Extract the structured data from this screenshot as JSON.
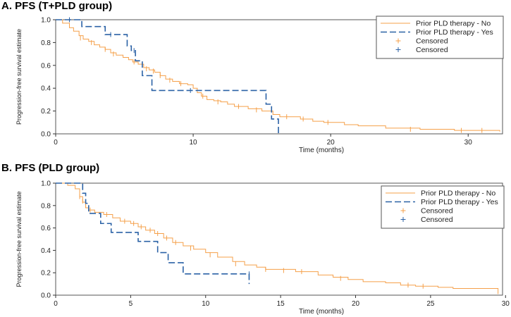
{
  "panels": [
    {
      "title": "A. PFS (T+PLD group)"
    },
    {
      "title": "B. PFS (PLD group)"
    }
  ],
  "colors": {
    "no": "#f5a04a",
    "yes": "#2b62a6",
    "axis": "#333333",
    "frame": "#555555"
  },
  "chart_data": [
    {
      "type": "line",
      "title": "A. PFS (T+PLD group)",
      "xlabel": "Time (months)",
      "ylabel": "Progression-free survival estimate",
      "xlim": [
        0,
        32.5
      ],
      "ylim": [
        0,
        1.0
      ],
      "xticks": [
        0,
        10,
        20,
        30
      ],
      "yticks": [
        0.0,
        0.2,
        0.4,
        0.6,
        0.8,
        1.0
      ],
      "ytick_labels": [
        "0.0",
        "0.2",
        "0.4",
        "0.6",
        "0.8",
        "1.0"
      ],
      "legend": {
        "position": "top-right",
        "entries": [
          "Prior PLD therapy - No",
          "Prior PLD therapy - Yes",
          "Censored",
          "Censored"
        ]
      },
      "series": [
        {
          "name": "Prior PLD therapy - No",
          "style": "solid",
          "x": [
            0,
            0.5,
            1.0,
            1.3,
            1.7,
            2.0,
            2.4,
            2.8,
            3.2,
            3.6,
            4.0,
            4.4,
            4.9,
            5.3,
            5.6,
            6.0,
            6.4,
            6.8,
            7.2,
            7.6,
            8.0,
            8.5,
            9.0,
            9.6,
            10.0,
            10.3,
            10.6,
            11.0,
            11.5,
            12.0,
            12.5,
            13.0,
            14.0,
            15.0,
            15.8,
            16.3,
            17.0,
            17.8,
            18.7,
            19.5,
            21.0,
            22.0,
            24.0,
            26.5,
            29.0,
            32.3
          ],
          "y": [
            1.0,
            0.97,
            0.93,
            0.9,
            0.86,
            0.83,
            0.81,
            0.78,
            0.76,
            0.74,
            0.71,
            0.69,
            0.67,
            0.65,
            0.63,
            0.61,
            0.58,
            0.56,
            0.54,
            0.51,
            0.48,
            0.46,
            0.44,
            0.43,
            0.4,
            0.36,
            0.33,
            0.3,
            0.29,
            0.28,
            0.26,
            0.24,
            0.22,
            0.2,
            0.17,
            0.15,
            0.15,
            0.13,
            0.11,
            0.1,
            0.08,
            0.07,
            0.05,
            0.04,
            0.03,
            0.02
          ],
          "censored_x": [
            1.8,
            2.6,
            3.6,
            4.2,
            5.7,
            6.6,
            7.1,
            7.6,
            8.3,
            9.1,
            10.7,
            11.8,
            13.3,
            14.6,
            16.8,
            18.0,
            19.8,
            25.8,
            29.5,
            31.0
          ],
          "censored_y": [
            0.84,
            0.8,
            0.74,
            0.7,
            0.63,
            0.57,
            0.55,
            0.51,
            0.47,
            0.44,
            0.33,
            0.28,
            0.24,
            0.21,
            0.15,
            0.13,
            0.1,
            0.04,
            0.03,
            0.03
          ]
        },
        {
          "name": "Prior PLD therapy - Yes",
          "style": "dashed",
          "x": [
            0,
            1.9,
            3.6,
            5.2,
            5.5,
            5.8,
            6.3,
            7.0,
            15.3,
            15.7,
            16.2
          ],
          "y": [
            1.0,
            0.94,
            0.87,
            0.77,
            0.73,
            0.64,
            0.51,
            0.38,
            0.26,
            0.13,
            0.0
          ],
          "censored_x": [
            1.0,
            4.0,
            5.7,
            9.8,
            16.2
          ],
          "censored_y": [
            1.0,
            0.87,
            0.73,
            0.38,
            0.04
          ]
        }
      ]
    },
    {
      "type": "line",
      "title": "B. PFS (PLD group)",
      "xlabel": "Time (months)",
      "ylabel": "Progression-free survival estimate",
      "xlim": [
        0,
        29.8
      ],
      "ylim": [
        0,
        1.0
      ],
      "xticks": [
        0,
        5,
        10,
        15,
        20,
        25,
        30
      ],
      "yticks": [
        0.0,
        0.2,
        0.4,
        0.6,
        0.8,
        1.0
      ],
      "ytick_labels": [
        "0.0",
        "0.2",
        "0.4",
        "0.6",
        "0.8",
        "1.0"
      ],
      "legend": {
        "position": "top-right",
        "entries": [
          "Prior PLD therapy - No",
          "Prior PLD therapy - Yes",
          "Censored",
          "Censored"
        ]
      },
      "series": [
        {
          "name": "Prior PLD therapy - No",
          "style": "solid",
          "x": [
            0,
            0.8,
            1.3,
            1.6,
            1.8,
            2.0,
            2.2,
            2.6,
            3.2,
            3.8,
            4.3,
            5.0,
            5.5,
            6.0,
            6.6,
            7.2,
            7.8,
            8.5,
            9.2,
            10.0,
            10.8,
            11.8,
            12.6,
            13.4,
            14.0,
            16.0,
            17.5,
            18.5,
            19.5,
            20.5,
            22.0,
            23.0,
            24.0,
            25.5,
            26.5,
            29.5
          ],
          "y": [
            1.0,
            0.98,
            0.95,
            0.88,
            0.83,
            0.78,
            0.76,
            0.74,
            0.72,
            0.69,
            0.66,
            0.64,
            0.61,
            0.58,
            0.55,
            0.51,
            0.47,
            0.44,
            0.41,
            0.38,
            0.34,
            0.3,
            0.27,
            0.25,
            0.23,
            0.21,
            0.18,
            0.16,
            0.14,
            0.12,
            0.11,
            0.09,
            0.08,
            0.07,
            0.06,
            0.01
          ],
          "censored_x": [
            1.6,
            1.8,
            2.0,
            2.3,
            3.4,
            4.6,
            5.2,
            5.7,
            6.3,
            6.8,
            7.4,
            8.0,
            9.0,
            10.3,
            12.0,
            14.0,
            15.2,
            16.4,
            19.0,
            23.5,
            24.5
          ],
          "censored_y": [
            0.88,
            0.84,
            0.8,
            0.76,
            0.72,
            0.66,
            0.64,
            0.61,
            0.58,
            0.55,
            0.51,
            0.47,
            0.42,
            0.36,
            0.28,
            0.23,
            0.22,
            0.21,
            0.15,
            0.09,
            0.08
          ]
        },
        {
          "name": "Prior PLD therapy - Yes",
          "style": "dashed",
          "x": [
            0,
            1.8,
            2.0,
            2.2,
            3.0,
            3.7,
            5.5,
            6.8,
            7.5,
            8.5,
            12.9
          ],
          "y": [
            1.0,
            0.91,
            0.82,
            0.73,
            0.64,
            0.56,
            0.48,
            0.38,
            0.29,
            0.19,
            0.1
          ],
          "censored_x": [
            12.9
          ],
          "censored_y": [
            0.19
          ]
        }
      ]
    }
  ]
}
